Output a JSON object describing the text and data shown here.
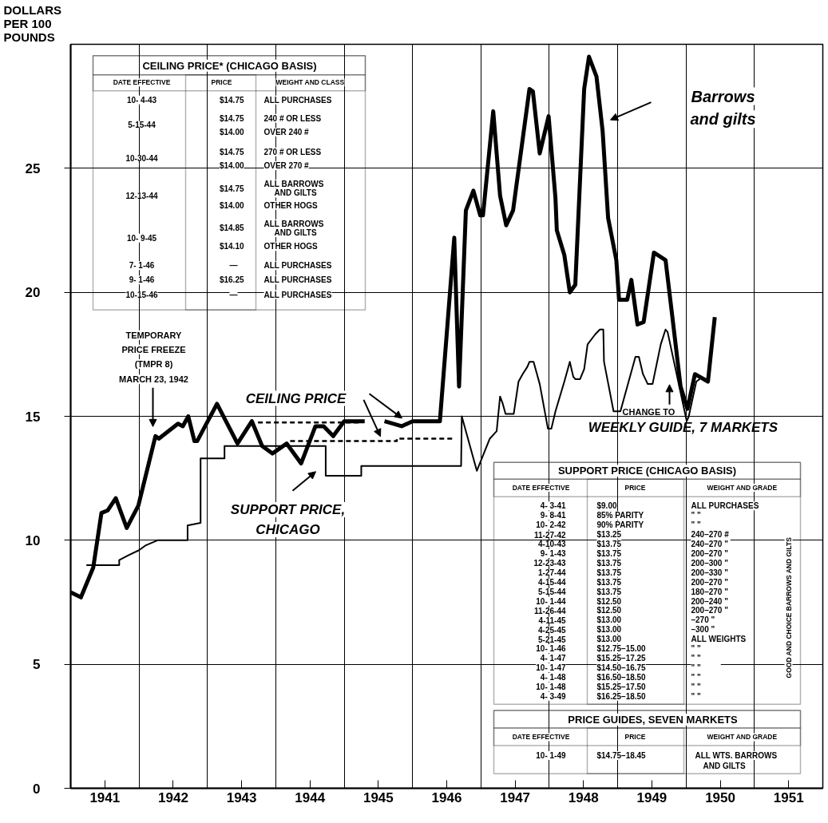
{
  "chart_data": {
    "type": "line",
    "ylabel": "DOLLARS PER 100 POUNDS",
    "xlim": [
      1941,
      1952
    ],
    "ylim": [
      0,
      30
    ],
    "xticks": [
      {
        "value": 1941,
        "label": null
      },
      {
        "value": 1941.5,
        "label": "1941"
      },
      {
        "value": 1942,
        "label": null
      },
      {
        "value": 1942.5,
        "label": "1942"
      },
      {
        "value": 1943,
        "label": null
      },
      {
        "value": 1943.5,
        "label": "1943"
      },
      {
        "value": 1944,
        "label": null
      },
      {
        "value": 1944.5,
        "label": "1944"
      },
      {
        "value": 1945,
        "label": null
      },
      {
        "value": 1945.5,
        "label": "1945"
      },
      {
        "value": 1946,
        "label": null
      },
      {
        "value": 1946.5,
        "label": "1946"
      },
      {
        "value": 1947,
        "label": null
      },
      {
        "value": 1947.5,
        "label": "1947"
      },
      {
        "value": 1948,
        "label": null
      },
      {
        "value": 1948.5,
        "label": "1948"
      },
      {
        "value": 1949,
        "label": null
      },
      {
        "value": 1949.5,
        "label": "1949"
      },
      {
        "value": 1950,
        "label": null
      },
      {
        "value": 1950.5,
        "label": "1950"
      },
      {
        "value": 1951,
        "label": null
      },
      {
        "value": 1951.5,
        "label": "1951"
      },
      {
        "value": 1952,
        "label": null
      }
    ],
    "yticks": [
      0,
      5,
      10,
      15,
      20,
      25
    ],
    "grid": true,
    "series": [
      {
        "color": "#000000",
        "line_style": "solid",
        "x": [
          1941.0,
          1941.15,
          1941.33,
          1941.45,
          1941.54,
          1941.66,
          1941.82,
          1941.99,
          1942.24,
          1942.29,
          1942.57,
          1942.64,
          1942.72,
          1942.81,
          1942.85,
          1943.14,
          1943.44,
          1943.65,
          1943.8,
          1943.95,
          1944.16,
          1944.37,
          1944.58,
          1944.7,
          1944.84,
          1945.0,
          1945.3,
          1945.45,
          1945.59,
          1945.84,
          1946.0,
          1946.4,
          1946.61,
          1946.68,
          1946.78,
          1946.89,
          1946.99,
          1947.03,
          1947.18,
          1947.28,
          1947.37,
          1947.47,
          1947.71,
          1947.76,
          1947.86,
          1947.99,
          1948.09,
          1948.11,
          1948.22,
          1948.3,
          1948.38,
          1948.51,
          1948.58,
          1948.69,
          1948.78,
          1948.86,
          1948.98,
          1949.02,
          1949.14,
          1949.2,
          1949.29,
          1949.38,
          1949.53,
          1949.7,
          1949.8,
          1949.92,
          1950.02,
          1950.13,
          1950.32,
          1950.42
        ],
        "values": [
          7.9,
          7.7,
          8.9,
          11.1,
          11.2,
          11.7,
          10.5,
          11.4,
          14.2,
          14.1,
          14.7,
          14.6,
          15.0,
          14.0,
          14.0,
          15.5,
          13.9,
          14.8,
          13.8,
          13.5,
          13.9,
          13.1,
          14.6,
          14.6,
          14.2,
          14.8,
          14.8,
          null,
          14.8,
          14.6,
          14.8,
          14.8,
          22.2,
          16.2,
          23.3,
          24.1,
          23.1,
          23.1,
          27.3,
          23.9,
          22.7,
          23.3,
          28.2,
          28.1,
          25.6,
          27.1,
          23.8,
          22.5,
          21.5,
          20.0,
          20.3,
          28.2,
          29.5,
          28.7,
          26.5,
          23.0,
          21.3,
          19.7,
          19.7,
          20.5,
          18.7,
          18.8,
          21.6,
          21.3,
          19.0,
          16.2,
          15.3,
          16.7,
          16.4,
          19.0
        ]
      },
      {
        "color": "#000000",
        "line_style": "solid",
        "x": [
          1941.23,
          1941.71,
          1941.71,
          1941.85,
          1942.0,
          1942.1,
          1942.27,
          1942.71,
          1942.71,
          1942.9,
          1942.9,
          1943.25,
          1943.25,
          1944.73,
          1944.73,
          1945.25,
          1945.25,
          1946.71,
          1946.72,
          1946.94,
          1947.13,
          1947.23,
          1947.28,
          1947.32,
          1947.36,
          1947.48,
          1947.55,
          1947.61,
          1947.68,
          1947.71,
          1947.77,
          1947.86,
          1947.98,
          1948.03,
          1948.09,
          1948.22,
          1948.3,
          1948.35,
          1948.38,
          1948.45,
          1948.51,
          1948.56,
          1948.67,
          1948.74,
          1948.79,
          1948.8,
          1948.94,
          1949.04,
          1949.14,
          1949.26,
          1949.31,
          1949.37,
          1949.44,
          1949.51,
          1949.57,
          1949.63,
          1949.7,
          1949.73,
          1950.01,
          1950.04,
          1950.15,
          1950.2
        ],
        "values": [
          9.0,
          9.0,
          9.2,
          9.4,
          9.6,
          9.8,
          10.0,
          10.0,
          10.6,
          10.7,
          13.3,
          13.3,
          13.8,
          13.8,
          12.6,
          12.6,
          13.0,
          13.0,
          15.0,
          12.8,
          14.1,
          14.4,
          15.8,
          15.5,
          15.1,
          15.1,
          16.4,
          16.7,
          17.0,
          17.2,
          17.2,
          16.3,
          14.5,
          14.5,
          15.2,
          16.4,
          17.2,
          16.6,
          16.5,
          16.5,
          16.9,
          17.9,
          18.3,
          18.5,
          18.5,
          17.2,
          15.2,
          15.2,
          16.2,
          17.4,
          17.4,
          16.7,
          16.3,
          16.3,
          17.1,
          17.9,
          18.5,
          18.4,
          14.8,
          15.0,
          16.4,
          16.5
        ]
      },
      {
        "color": "#000000",
        "line_style": "dashed",
        "x": [
          1943.74,
          1945.26
        ],
        "values": [
          14.75,
          14.75
        ]
      },
      {
        "color": "#000000",
        "line_style": "dashed",
        "x": [
          1944.21,
          1945.77,
          1945.77,
          1946.61
        ],
        "values": [
          14.0,
          14.0,
          14.1,
          14.1
        ]
      }
    ],
    "annotations": [
      "Barrows\nand gilts",
      "CEILING PRICE",
      "SUPPORT PRICE,\nCHICAGO",
      "TEMPORARY\nPRICE FREEZE\n(TMPR 8)\nMARCH 23, 1942",
      "CHANGE TO\nWEEKLY GUIDE, 7 MARKETS",
      "CEILING PRICE* (CHICAGO BASIS)",
      "DATE EFFECTIVE",
      "PRICE",
      "WEIGHT AND CLASS",
      "10- 4-43",
      "$14.75",
      "ALL PURCHASES",
      "5-15-44",
      "$14.75",
      "240 # OR LESS",
      "$14.00",
      "OVER 240 #",
      "10-30-44",
      "$14.75",
      "270 # OR LESS",
      "$14.00",
      "OVER 270 #",
      "12-13-44",
      "$14.75",
      "ALL BARROWS",
      "AND GILTS",
      "$14.00",
      "OTHER HOGS",
      "10- 9-45",
      "$14.85",
      "ALL BARROWS",
      "AND GILTS",
      "$14.10",
      "OTHER HOGS",
      "7- 1-46",
      "—",
      "ALL PURCHASES",
      "9- 1-46",
      "$16.25",
      "ALL PURCHASES",
      "10-15-46",
      "—",
      "ALL PURCHASES",
      "SUPPORT PRICE (CHICAGO BASIS)",
      "DATE EFFECTIVE",
      "PRICE",
      "WEIGHT AND GRADE",
      "4- 3-41",
      "$9.00",
      "ALL PURCHASES",
      "9- 8-41",
      "85% PARITY",
      "\"          \"",
      "10- 2-42",
      "90% PARITY",
      "\"          \"",
      "11-27-42",
      "$13.25",
      "240–270  #",
      "4-10-43",
      "$13.75",
      "240–270  \"",
      "9- 1-43",
      "$13.75",
      "200–270  \"",
      "12-23-43",
      "$13.75",
      "200–300  \"",
      "1-27-44",
      "$13.75",
      "200–330  \"",
      "4-15-44",
      "$13.75",
      "200–270  \"",
      "5-15-44",
      "$13.75",
      "180–270  \"",
      "10- 1-44",
      "$12.50",
      "200–240  \"",
      "11-26-44",
      "$12.50",
      "200–270  \"",
      "4-11-45",
      "$13.00",
      "     –270  \"",
      "4-25-45",
      "$13.00",
      "     –300  \"",
      "5-21-45",
      "$13.00",
      "ALL WEIGHTS",
      "10- 1-46",
      "$12.75–15.00",
      "\"          \"",
      "4- 1-47",
      "$15.25–17.25",
      "\"          \"",
      "10- 1-47",
      "$14.50–16.75",
      "\"          \"",
      "4- 1-48",
      "$16.50–18.50",
      "\"          \"",
      "10- 1-48",
      "$15.25–17.50",
      "\"          \"",
      "4- 3-49",
      "$16.25–18.50",
      "\"          \"",
      "GOOD AND CHOICE BARROWS AND GILTS",
      "PRICE GUIDES, SEVEN MARKETS",
      "DATE EFFECTIVE",
      "PRICE",
      "WEIGHT AND GRADE",
      "10- 1-49",
      "$14.75–18.45",
      "ALL WTS. BARROWS",
      "AND GILTS"
    ]
  }
}
